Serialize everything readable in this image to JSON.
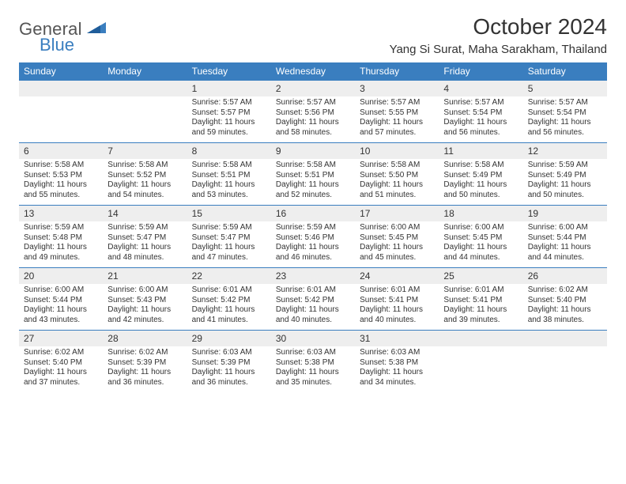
{
  "brand": {
    "word1": "General",
    "word2": "Blue"
  },
  "title": "October 2024",
  "location": "Yang Si Surat, Maha Sarakham, Thailand",
  "colors": {
    "header_bg": "#3a7ebf",
    "header_text": "#ffffff",
    "daynum_bg": "#eeeeee",
    "week_divider": "#3a7ebf",
    "body_text": "#333333",
    "logo_accent": "#3a7ebf"
  },
  "day_names": [
    "Sunday",
    "Monday",
    "Tuesday",
    "Wednesday",
    "Thursday",
    "Friday",
    "Saturday"
  ],
  "weeks": [
    [
      null,
      null,
      {
        "n": "1",
        "sr": "5:57 AM",
        "ss": "5:57 PM",
        "dl": "11 hours",
        "dl2": "and 59 minutes."
      },
      {
        "n": "2",
        "sr": "5:57 AM",
        "ss": "5:56 PM",
        "dl": "11 hours",
        "dl2": "and 58 minutes."
      },
      {
        "n": "3",
        "sr": "5:57 AM",
        "ss": "5:55 PM",
        "dl": "11 hours",
        "dl2": "and 57 minutes."
      },
      {
        "n": "4",
        "sr": "5:57 AM",
        "ss": "5:54 PM",
        "dl": "11 hours",
        "dl2": "and 56 minutes."
      },
      {
        "n": "5",
        "sr": "5:57 AM",
        "ss": "5:54 PM",
        "dl": "11 hours",
        "dl2": "and 56 minutes."
      }
    ],
    [
      {
        "n": "6",
        "sr": "5:58 AM",
        "ss": "5:53 PM",
        "dl": "11 hours",
        "dl2": "and 55 minutes."
      },
      {
        "n": "7",
        "sr": "5:58 AM",
        "ss": "5:52 PM",
        "dl": "11 hours",
        "dl2": "and 54 minutes."
      },
      {
        "n": "8",
        "sr": "5:58 AM",
        "ss": "5:51 PM",
        "dl": "11 hours",
        "dl2": "and 53 minutes."
      },
      {
        "n": "9",
        "sr": "5:58 AM",
        "ss": "5:51 PM",
        "dl": "11 hours",
        "dl2": "and 52 minutes."
      },
      {
        "n": "10",
        "sr": "5:58 AM",
        "ss": "5:50 PM",
        "dl": "11 hours",
        "dl2": "and 51 minutes."
      },
      {
        "n": "11",
        "sr": "5:58 AM",
        "ss": "5:49 PM",
        "dl": "11 hours",
        "dl2": "and 50 minutes."
      },
      {
        "n": "12",
        "sr": "5:59 AM",
        "ss": "5:49 PM",
        "dl": "11 hours",
        "dl2": "and 50 minutes."
      }
    ],
    [
      {
        "n": "13",
        "sr": "5:59 AM",
        "ss": "5:48 PM",
        "dl": "11 hours",
        "dl2": "and 49 minutes."
      },
      {
        "n": "14",
        "sr": "5:59 AM",
        "ss": "5:47 PM",
        "dl": "11 hours",
        "dl2": "and 48 minutes."
      },
      {
        "n": "15",
        "sr": "5:59 AM",
        "ss": "5:47 PM",
        "dl": "11 hours",
        "dl2": "and 47 minutes."
      },
      {
        "n": "16",
        "sr": "5:59 AM",
        "ss": "5:46 PM",
        "dl": "11 hours",
        "dl2": "and 46 minutes."
      },
      {
        "n": "17",
        "sr": "6:00 AM",
        "ss": "5:45 PM",
        "dl": "11 hours",
        "dl2": "and 45 minutes."
      },
      {
        "n": "18",
        "sr": "6:00 AM",
        "ss": "5:45 PM",
        "dl": "11 hours",
        "dl2": "and 44 minutes."
      },
      {
        "n": "19",
        "sr": "6:00 AM",
        "ss": "5:44 PM",
        "dl": "11 hours",
        "dl2": "and 44 minutes."
      }
    ],
    [
      {
        "n": "20",
        "sr": "6:00 AM",
        "ss": "5:44 PM",
        "dl": "11 hours",
        "dl2": "and 43 minutes."
      },
      {
        "n": "21",
        "sr": "6:00 AM",
        "ss": "5:43 PM",
        "dl": "11 hours",
        "dl2": "and 42 minutes."
      },
      {
        "n": "22",
        "sr": "6:01 AM",
        "ss": "5:42 PM",
        "dl": "11 hours",
        "dl2": "and 41 minutes."
      },
      {
        "n": "23",
        "sr": "6:01 AM",
        "ss": "5:42 PM",
        "dl": "11 hours",
        "dl2": "and 40 minutes."
      },
      {
        "n": "24",
        "sr": "6:01 AM",
        "ss": "5:41 PM",
        "dl": "11 hours",
        "dl2": "and 40 minutes."
      },
      {
        "n": "25",
        "sr": "6:01 AM",
        "ss": "5:41 PM",
        "dl": "11 hours",
        "dl2": "and 39 minutes."
      },
      {
        "n": "26",
        "sr": "6:02 AM",
        "ss": "5:40 PM",
        "dl": "11 hours",
        "dl2": "and 38 minutes."
      }
    ],
    [
      {
        "n": "27",
        "sr": "6:02 AM",
        "ss": "5:40 PM",
        "dl": "11 hours",
        "dl2": "and 37 minutes."
      },
      {
        "n": "28",
        "sr": "6:02 AM",
        "ss": "5:39 PM",
        "dl": "11 hours",
        "dl2": "and 36 minutes."
      },
      {
        "n": "29",
        "sr": "6:03 AM",
        "ss": "5:39 PM",
        "dl": "11 hours",
        "dl2": "and 36 minutes."
      },
      {
        "n": "30",
        "sr": "6:03 AM",
        "ss": "5:38 PM",
        "dl": "11 hours",
        "dl2": "and 35 minutes."
      },
      {
        "n": "31",
        "sr": "6:03 AM",
        "ss": "5:38 PM",
        "dl": "11 hours",
        "dl2": "and 34 minutes."
      },
      null,
      null
    ]
  ],
  "labels": {
    "sunrise_prefix": "Sunrise: ",
    "sunset_prefix": "Sunset: ",
    "daylight_prefix": "Daylight: "
  }
}
